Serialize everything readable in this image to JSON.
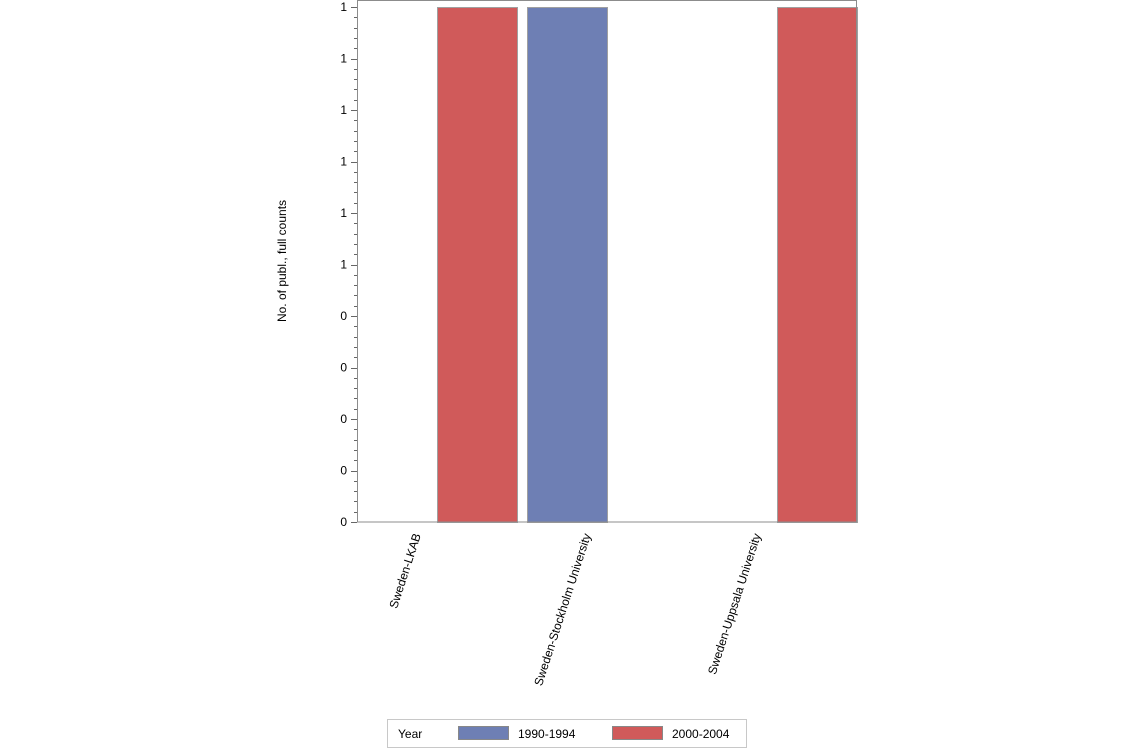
{
  "chart_data": {
    "type": "bar",
    "title": "",
    "xlabel": "",
    "ylabel": "No. of publ., full counts",
    "ylim": [
      0,
      1
    ],
    "y_tick_values": [
      0,
      0.1,
      0.2,
      0.3,
      0.4,
      0.5,
      0.6,
      0.7,
      0.8,
      0.9,
      1.0
    ],
    "y_tick_labels": [
      "0",
      "0",
      "0",
      "0",
      "0",
      "1",
      "1",
      "1",
      "1",
      "1",
      "1"
    ],
    "categories": [
      "Sweden-LKAB",
      "Sweden-Stockholm University",
      "Sweden-Uppsala University"
    ],
    "series": [
      {
        "name": "1990-1994",
        "color": "#6e7fb4",
        "values": [
          0,
          1,
          0
        ]
      },
      {
        "name": "2000-2004",
        "color": "#d05a5a",
        "values": [
          1,
          0,
          1
        ]
      }
    ],
    "legend": {
      "title": "Year",
      "placement": "bottom"
    },
    "grid": false
  }
}
